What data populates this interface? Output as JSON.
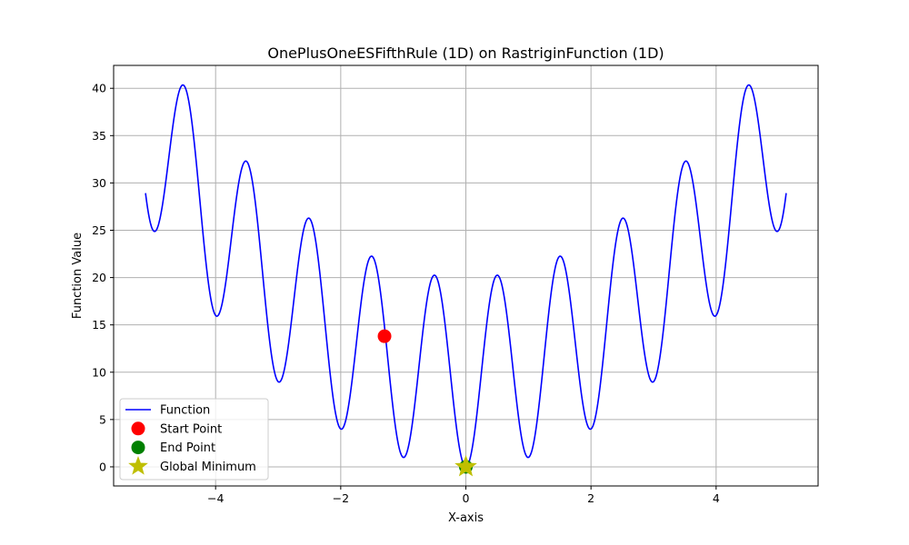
{
  "chart_data": {
    "type": "line",
    "title": "OnePlusOneESFifthRule (1D) on RastriginFunction (1D)",
    "xlabel": "X-axis",
    "ylabel": "Function Value",
    "xlim": [
      -5.63,
      5.63
    ],
    "ylim": [
      -2.02,
      42.42
    ],
    "xticks": [
      -4,
      -2,
      0,
      2,
      4
    ],
    "xtick_labels": [
      "−4",
      "−2",
      "0",
      "2",
      "4"
    ],
    "yticks": [
      0,
      5,
      10,
      15,
      20,
      25,
      30,
      35,
      40
    ],
    "ytick_labels": [
      "0",
      "5",
      "10",
      "15",
      "20",
      "25",
      "30",
      "35",
      "40"
    ],
    "grid": true,
    "legend_position": "lower-left",
    "series": [
      {
        "name": "Function",
        "kind": "line",
        "function": "rastrigin-1d",
        "A": 10,
        "x_range": [
          -5.12,
          5.12
        ],
        "color": "#0000ff"
      },
      {
        "name": "Start Point",
        "kind": "marker",
        "marker": "circle",
        "color": "#ff0000",
        "points": [
          {
            "x": -1.3,
            "y": 13.8
          }
        ]
      },
      {
        "name": "End Point",
        "kind": "marker",
        "marker": "circle",
        "color": "#008000",
        "points": [
          {
            "x": 0.0,
            "y": 0.0
          }
        ]
      },
      {
        "name": "Global Minimum",
        "kind": "marker",
        "marker": "star",
        "color": "#bfbf00",
        "points": [
          {
            "x": 0.0,
            "y": 0.0
          }
        ]
      }
    ]
  }
}
